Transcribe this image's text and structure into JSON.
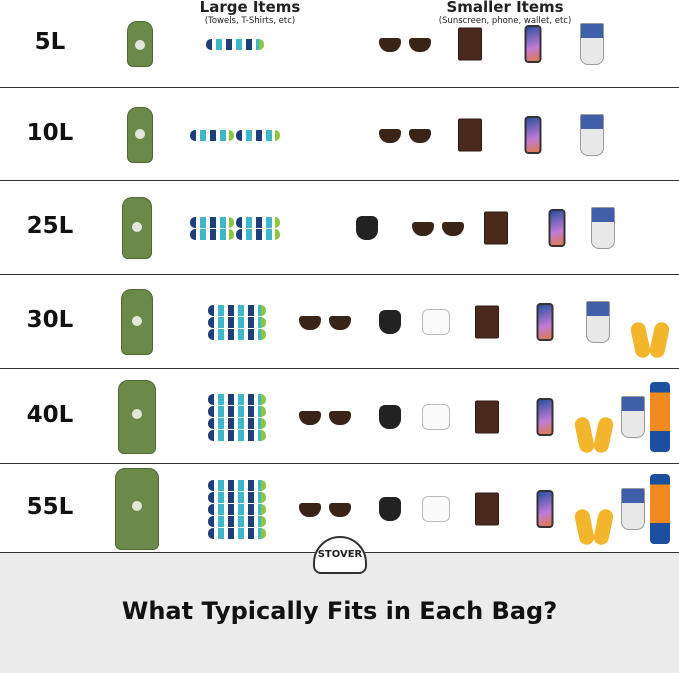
{
  "header": {
    "large_title": "Large Items",
    "large_sub": "(Towels, T-Shirts, etc)",
    "small_title": "Smaller Items",
    "small_sub": "(Sunscreen, phone, wallet, etc)"
  },
  "rows": [
    {
      "size": "5L",
      "items": [
        "bag",
        "towel-1",
        "sunglasses",
        "wallet",
        "phone",
        "sunscreen"
      ]
    },
    {
      "size": "10L",
      "items": [
        "bag",
        "towel-2",
        "sunglasses",
        "wallet",
        "phone",
        "sunscreen"
      ]
    },
    {
      "size": "25L",
      "items": [
        "bag",
        "towel-2x2",
        "keys",
        "sunglasses",
        "wallet",
        "phone",
        "sunscreen"
      ]
    },
    {
      "size": "30L",
      "items": [
        "bag",
        "towel-3",
        "sunglasses",
        "keys",
        "airpods",
        "wallet",
        "phone",
        "sunscreen",
        "flip-flops"
      ]
    },
    {
      "size": "40L",
      "items": [
        "bag",
        "towel-4",
        "sunglasses",
        "keys",
        "airpods",
        "wallet",
        "phone",
        "flip-flops",
        "sunscreen",
        "spray-sunscreen"
      ]
    },
    {
      "size": "55L",
      "items": [
        "bag",
        "towel-5",
        "sunglasses",
        "keys",
        "airpods",
        "wallet",
        "phone",
        "flip-flops",
        "sunscreen",
        "spray-sunscreen"
      ]
    }
  ],
  "footer": {
    "title": "What Typically Fits in Each Bag?",
    "brand": "STOVER"
  },
  "colors": {
    "bag_green": "#6b8a4a",
    "footer_bg": "#ebebeb"
  }
}
